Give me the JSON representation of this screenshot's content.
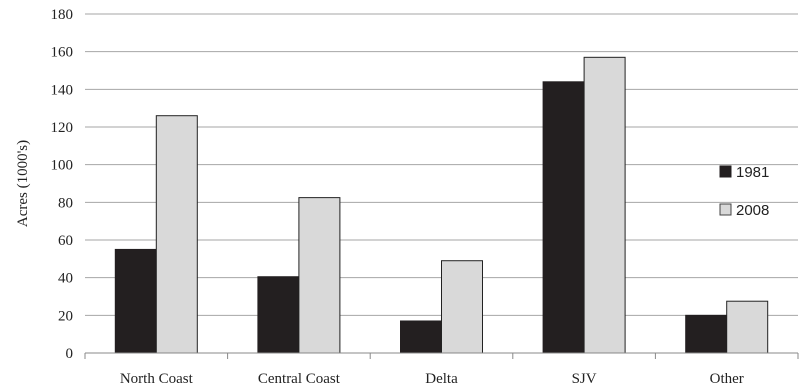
{
  "chart_data": {
    "type": "bar",
    "title": "",
    "xlabel": "",
    "ylabel": "Acres (1000's)",
    "categories": [
      "North Coast",
      "Central Coast",
      "Delta",
      "SJV",
      "Other"
    ],
    "series": [
      {
        "name": "1981",
        "color": "#231f20",
        "values": [
          55,
          40.5,
          17,
          144,
          20
        ]
      },
      {
        "name": "2008",
        "color": "#d9d9d9",
        "values": [
          126,
          82.5,
          49,
          157,
          27.5
        ]
      }
    ],
    "ylim": [
      0,
      180
    ],
    "yticks": [
      0,
      20,
      40,
      60,
      80,
      100,
      120,
      140,
      160,
      180
    ],
    "grid": true,
    "legend_position": "right"
  }
}
